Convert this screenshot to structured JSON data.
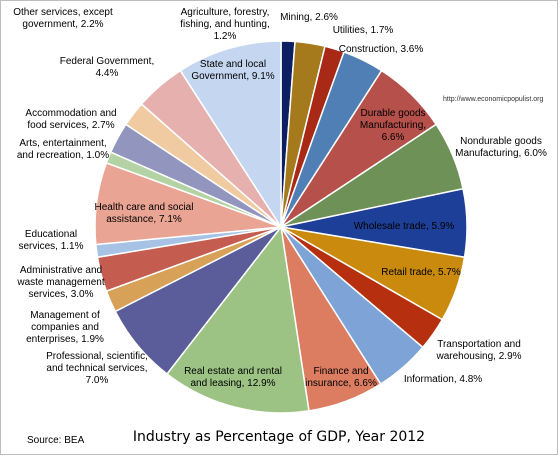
{
  "chart_data": {
    "type": "pie",
    "title": "Industry as Percentage of GDP, Year 2012",
    "source": "Source:  BEA",
    "credit": "http://www.economicpopulist.org",
    "slices": [
      {
        "label": "Agriculture, forestry, fishing, and hunting, 1.2%",
        "category": "Agriculture, forestry, fishing, and hunting",
        "value": 1.2,
        "color": "#0d1f63"
      },
      {
        "label": "Mining, 2.6%",
        "category": "Mining",
        "value": 2.6,
        "color": "#a47a1c"
      },
      {
        "label": "Utilities, 1.7%",
        "category": "Utilities",
        "value": 1.7,
        "color": "#a82a16"
      },
      {
        "label": "Construction, 3.6%",
        "category": "Construction",
        "value": 3.6,
        "color": "#4f7fb5"
      },
      {
        "label": "Durable goods Manufacturing, 6.6%",
        "category": "Durable goods Manufacturing",
        "value": 6.6,
        "color": "#b5504a"
      },
      {
        "label": "Nondurable goods Manufacturing, 6.0%",
        "category": "Nondurable goods Manufacturing",
        "value": 6.0,
        "color": "#6e9158"
      },
      {
        "label": "Wholesale trade, 5.9%",
        "category": "Wholesale trade",
        "value": 5.9,
        "color": "#1e3f98"
      },
      {
        "label": "Retail trade, 5.7%",
        "category": "Retail trade",
        "value": 5.7,
        "color": "#c98a0e"
      },
      {
        "label": "Transportation and warehousing, 2.9%",
        "category": "Transportation and warehousing",
        "value": 2.9,
        "color": "#b6300f"
      },
      {
        "label": "Information, 4.8%",
        "category": "Information",
        "value": 4.8,
        "color": "#7ea3d6"
      },
      {
        "label": "Finance and insurance, 6.6%",
        "category": "Finance and insurance",
        "value": 6.6,
        "color": "#dc7d61"
      },
      {
        "label": "Real estate and rental and leasing, 12.9%",
        "category": "Real estate and rental and leasing",
        "value": 12.9,
        "color": "#9cc384"
      },
      {
        "label": "Professional, scientific, and technical services, 7.0%",
        "category": "Professional, scientific, and technical services",
        "value": 7.0,
        "color": "#5a5d99"
      },
      {
        "label": "Management of companies and enterprises, 1.9%",
        "category": "Management of companies and enterprises",
        "value": 1.9,
        "color": "#d7a157"
      },
      {
        "label": "Administrative and waste management services, 3.0%",
        "category": "Administrative and waste management services",
        "value": 3.0,
        "color": "#c55c50"
      },
      {
        "label": "Educational services, 1.1%",
        "category": "Educational services",
        "value": 1.1,
        "color": "#a6c3e6"
      },
      {
        "label": "Health care and social assistance, 7.1%",
        "category": "Health care and social assistance",
        "value": 7.1,
        "color": "#e9a493"
      },
      {
        "label": "Arts, entertainment, and recreation, 1.0%",
        "category": "Arts, entertainment, and recreation",
        "value": 1.0,
        "color": "#b3d3a5"
      },
      {
        "label": "Accommodation and food services, 2.7%",
        "category": "Accommodation and food services",
        "value": 2.7,
        "color": "#9295bd"
      },
      {
        "label": "Other services, except government, 2.2%",
        "category": "Other services, except government",
        "value": 2.2,
        "color": "#f0cba1"
      },
      {
        "label": "Federal Government, 4.4%",
        "category": "Federal Government",
        "value": 4.4,
        "color": "#e5b0ae"
      },
      {
        "label": "State and local Government, 9.1%",
        "category": "State and local Government",
        "value": 9.1,
        "color": "#c5d7f0"
      }
    ]
  }
}
